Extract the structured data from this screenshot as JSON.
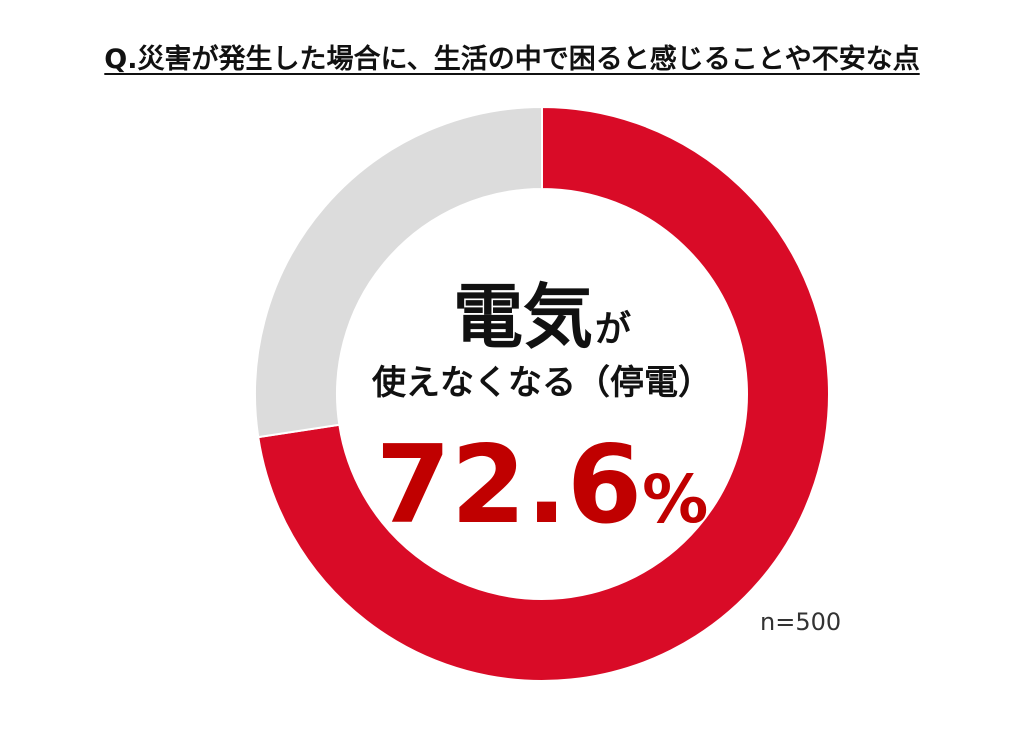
{
  "title": "Q.災害が発生した場合に、生活の中で困ると感じることや不安な点",
  "center": {
    "main_big": "電気",
    "main_small": "が",
    "sub": "使えなくなる（停電）",
    "value_number": "72.6",
    "value_unit": "%"
  },
  "note": "n=500",
  "colors": {
    "primary": "#d90b27",
    "remainder": "#dcdcdc",
    "value_text": "#c00000"
  },
  "chart_data": {
    "type": "pie",
    "donut": true,
    "title": "Q.災害が発生した場合に、生活の中で困ると感じることや不安な点",
    "slices": [
      {
        "label": "電気が使えなくなる（停電）",
        "value": 72.6
      },
      {
        "label": "",
        "value": 27.4
      }
    ],
    "unit": "%",
    "n": 500
  }
}
